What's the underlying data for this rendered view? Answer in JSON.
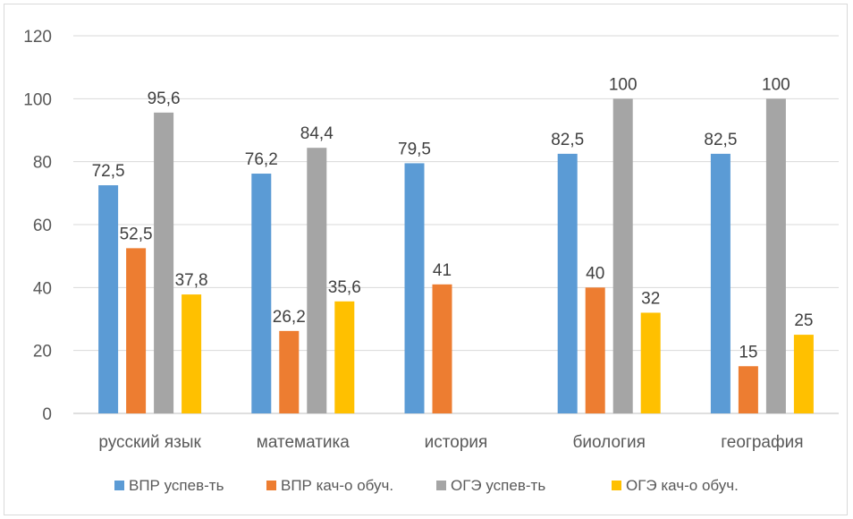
{
  "chart_data": {
    "type": "bar",
    "categories": [
      "русский язык",
      "математика",
      "история",
      "биология",
      "география"
    ],
    "series": [
      {
        "name": "ВПР успев-ть",
        "color": "#5b9bd5",
        "values": [
          72.5,
          76.2,
          79.5,
          82.5,
          82.5
        ],
        "labels": [
          "72,5",
          "76,2",
          "79,5",
          "82,5",
          "82,5"
        ]
      },
      {
        "name": "ВПР кач-о обуч.",
        "color": "#ed7d31",
        "values": [
          52.5,
          26.2,
          41,
          40,
          15
        ],
        "labels": [
          "52,5",
          "26,2",
          "41",
          "40",
          "15"
        ]
      },
      {
        "name": "ОГЭ успев-ть",
        "color": "#a5a5a5",
        "values": [
          95.6,
          84.4,
          null,
          100,
          100
        ],
        "labels": [
          "95,6",
          "84,4",
          "",
          "100",
          "100"
        ]
      },
      {
        "name": "ОГЭ кач-о обуч.",
        "color": "#ffc000",
        "values": [
          37.8,
          35.6,
          null,
          32,
          25
        ],
        "labels": [
          "37,8",
          "35,6",
          "",
          "32",
          "25"
        ]
      }
    ],
    "ylim": [
      0,
      120
    ],
    "yticks": [
      "0",
      "20",
      "40",
      "60",
      "80",
      "100",
      "120"
    ],
    "grid": true,
    "legend_position": "bottom"
  }
}
